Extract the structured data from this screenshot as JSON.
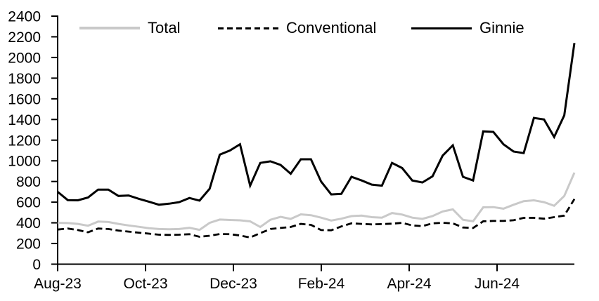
{
  "chart_data": {
    "type": "line",
    "title": "",
    "xlabel": "",
    "ylabel": "",
    "ylim": [
      0,
      2400
    ],
    "y_tick_step": 200,
    "y_tick_labels": [
      "0",
      "200",
      "400",
      "600",
      "800",
      "1000",
      "1200",
      "1400",
      "1600",
      "1800",
      "2000",
      "2200",
      "2400"
    ],
    "x_axis": {
      "tick_labels": [
        "Aug-23",
        "Oct-23",
        "Dec-23",
        "Feb-24",
        "Apr-24",
        "Jun-24"
      ],
      "unit": "weekly observations, Aug-2023 through early Aug-2024"
    },
    "grid": "off",
    "legend_position": "top",
    "axis_color": "#000000",
    "series": [
      {
        "name": "Total",
        "color": "#c9c9c9",
        "dash": "solid",
        "width": 3,
        "values": [
          400,
          398,
          390,
          372,
          412,
          408,
          390,
          375,
          362,
          348,
          340,
          338,
          340,
          352,
          332,
          400,
          432,
          428,
          424,
          414,
          360,
          430,
          458,
          438,
          482,
          474,
          450,
          422,
          440,
          465,
          470,
          455,
          450,
          495,
          480,
          450,
          438,
          465,
          510,
          530,
          430,
          415,
          550,
          552,
          537,
          575,
          610,
          618,
          600,
          565,
          660,
          885
        ]
      },
      {
        "name": "Conventional",
        "color": "#000000",
        "dash": "dashed",
        "width": 2.8,
        "values": [
          335,
          345,
          330,
          308,
          345,
          340,
          325,
          315,
          305,
          295,
          285,
          283,
          285,
          290,
          265,
          275,
          292,
          290,
          278,
          258,
          300,
          340,
          350,
          360,
          390,
          380,
          330,
          328,
          365,
          395,
          390,
          385,
          388,
          392,
          400,
          375,
          368,
          395,
          400,
          395,
          355,
          350,
          415,
          418,
          418,
          425,
          448,
          448,
          440,
          455,
          470,
          630
        ]
      },
      {
        "name": "Ginnie",
        "color": "#000000",
        "dash": "solid",
        "width": 3,
        "values": [
          700,
          620,
          618,
          645,
          722,
          722,
          660,
          665,
          633,
          605,
          575,
          585,
          600,
          640,
          615,
          730,
          1060,
          1100,
          1160,
          760,
          980,
          995,
          960,
          875,
          1015,
          1015,
          800,
          675,
          680,
          845,
          810,
          770,
          760,
          980,
          930,
          810,
          790,
          850,
          1050,
          1150,
          845,
          810,
          1285,
          1280,
          1160,
          1090,
          1075,
          1415,
          1400,
          1230,
          1440,
          2140
        ]
      }
    ]
  }
}
